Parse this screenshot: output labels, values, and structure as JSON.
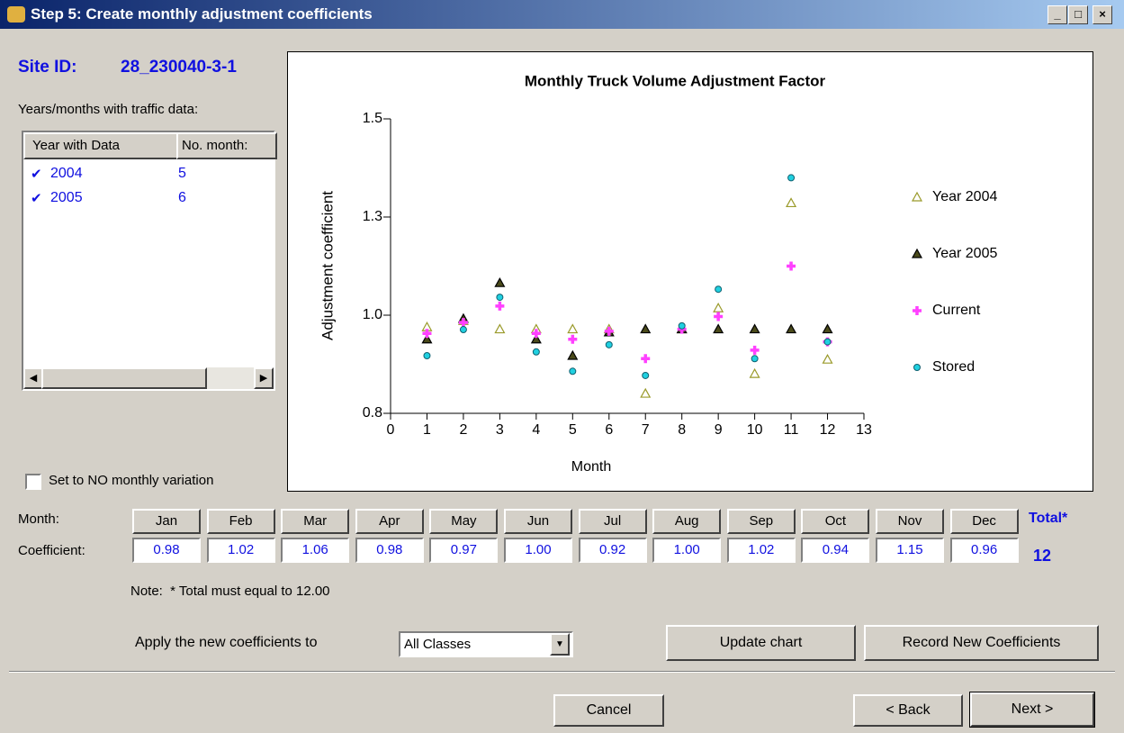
{
  "window": {
    "title": "Step 5: Create monthly adjustment coefficients"
  },
  "site": {
    "label": "Site ID:",
    "value": "28_230040-3-1"
  },
  "years_list": {
    "label": "Years/months with traffic data:",
    "columns": [
      "Year with Data",
      "No. month:"
    ],
    "rows": [
      [
        "2004",
        "5"
      ],
      [
        "2005",
        "6"
      ]
    ]
  },
  "no_variation": {
    "label": "Set to NO monthly variation"
  },
  "chart_data": {
    "type": "scatter",
    "title": "Monthly Truck Volume Adjustment Factor",
    "x_label": "Month",
    "y_label": "Adjustment coefficient",
    "x": [
      1,
      2,
      3,
      4,
      5,
      6,
      7,
      8,
      9,
      10,
      11,
      12
    ],
    "xlim": [
      0,
      13
    ],
    "xticks": [
      0,
      1,
      2,
      3,
      4,
      5,
      6,
      7,
      8,
      9,
      10,
      11,
      12,
      13
    ],
    "ylim": [
      0.8,
      1.5
    ],
    "yticks": [
      {
        "value": 0.8,
        "label": "0.8"
      },
      {
        "value": 1.0333,
        "label": "1.0"
      },
      {
        "value": 1.2667,
        "label": "1.3"
      },
      1.5
    ],
    "legend": "right",
    "series": [
      {
        "name": "Year 2004",
        "color": "#9a9a2a",
        "marker": "triangle-open",
        "values": [
          1.005,
          1.02,
          1.0,
          1.0,
          1.0,
          1.0,
          0.847,
          1.0,
          1.05,
          0.894,
          1.3,
          0.928
        ]
      },
      {
        "name": "Year 2005",
        "color": "#4a4a1a",
        "marker": "triangle",
        "values": [
          0.976,
          1.025,
          1.11,
          0.976,
          0.937,
          0.993,
          1.0,
          1.0,
          1.0,
          1.0,
          1.0,
          1.0
        ]
      },
      {
        "name": "Current",
        "color": "#ff40ff",
        "marker": "cross",
        "values": [
          0.99,
          1.016,
          1.055,
          0.99,
          0.976,
          0.995,
          0.93,
          1.0,
          1.03,
          0.95,
          1.15,
          0.97
        ]
      },
      {
        "name": "Stored",
        "color": "#20d0e0",
        "marker": "circle",
        "values": [
          0.937,
          0.999,
          1.076,
          0.946,
          0.9,
          0.963,
          0.89,
          1.008,
          1.095,
          0.93,
          1.36,
          0.97
        ]
      }
    ]
  },
  "coefficients": {
    "month_label": "Month:",
    "coef_label": "Coefficient:",
    "months": [
      "Jan",
      "Feb",
      "Mar",
      "Apr",
      "May",
      "Jun",
      "Jul",
      "Aug",
      "Sep",
      "Oct",
      "Nov",
      "Dec"
    ],
    "values": [
      "0.98",
      "1.02",
      "1.06",
      "0.98",
      "0.97",
      "1.00",
      "0.92",
      "1.00",
      "1.02",
      "0.94",
      "1.15",
      "0.96"
    ],
    "total_label": "Total*",
    "total": "12"
  },
  "note": "Note:  * Total must equal to 12.00",
  "apply": {
    "label": "Apply the new coefficients to",
    "selected": "All Classes"
  },
  "buttons": {
    "update": "Update chart",
    "record": "Record New Coefficients",
    "cancel": "Cancel",
    "back": "< Back",
    "next": "Next >"
  }
}
